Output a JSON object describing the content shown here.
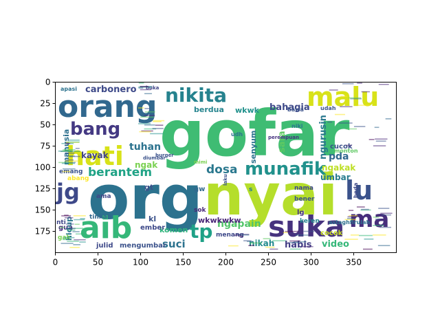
{
  "chart_data": {
    "type": "wordcloud",
    "background": "#ffffff",
    "colormap": "viridis",
    "grid": false,
    "xlim": [
      0,
      400
    ],
    "ylim": [
      200,
      0
    ],
    "xticks": [
      "0",
      "50",
      "100",
      "150",
      "200",
      "250",
      "300",
      "350"
    ],
    "yticks": [
      "0",
      "25",
      "50",
      "75",
      "100",
      "125",
      "150",
      "175"
    ],
    "words": [
      {
        "text": "gofar",
        "color": "#3fbc73"
      },
      {
        "text": "org",
        "color": "#2c728e"
      },
      {
        "text": "nyai",
        "color": "#b5de2b"
      },
      {
        "text": "orang",
        "color": "#31688e"
      },
      {
        "text": "aib",
        "color": "#35b779"
      },
      {
        "text": "suka",
        "color": "#46327e"
      },
      {
        "text": "malu",
        "color": "#d8e219"
      },
      {
        "text": "hati",
        "color": "#d8e219"
      },
      {
        "text": "nikita",
        "color": "#26828e"
      },
      {
        "text": "munafik",
        "color": "#21918c"
      },
      {
        "text": "ma",
        "color": "#472d7b"
      },
      {
        "text": "lu",
        "color": "#3b528b"
      },
      {
        "text": "jg",
        "color": "#3e4989"
      },
      {
        "text": "tp",
        "color": "#1fa187"
      },
      {
        "text": "bang",
        "color": "#443983"
      },
      {
        "text": "dosa",
        "color": "#2a788e"
      },
      {
        "text": "berantem",
        "color": "#20a386"
      },
      {
        "text": "carbonero",
        "color": "#3e4a89"
      },
      {
        "text": "tuhan",
        "color": "#2c728e"
      },
      {
        "text": "suci",
        "color": "#2c728e"
      },
      {
        "text": "video",
        "color": "#35b779"
      },
      {
        "text": "habis",
        "color": "#433e85"
      },
      {
        "text": "nikah",
        "color": "#238a8d"
      },
      {
        "text": "ngapain",
        "color": "#52c569"
      },
      {
        "text": "bahagia",
        "color": "#3e4989"
      },
      {
        "text": "wkwk",
        "color": "#21918c"
      },
      {
        "text": "berdua",
        "color": "#25848e"
      },
      {
        "text": "manusia",
        "color": "#2d708e"
      },
      {
        "text": "kayak",
        "color": "#414487"
      },
      {
        "text": "ngak",
        "color": "#7ad151"
      },
      {
        "text": "gt",
        "color": "#3b528b"
      },
      {
        "text": "senyum",
        "color": "#2c728e"
      },
      {
        "text": "sara",
        "color": "#5ec962"
      },
      {
        "text": "ngurusin",
        "color": "#2a788e"
      },
      {
        "text": "pda",
        "color": "#31688e"
      },
      {
        "text": "cucok",
        "color": "#3b528b"
      },
      {
        "text": "ngakak",
        "color": "#bddf26"
      },
      {
        "text": "umbar",
        "color": "#287c8e"
      },
      {
        "text": "komen",
        "color": "#2fb47c"
      },
      {
        "text": "kl",
        "color": "#3b528b"
      },
      {
        "text": "ember",
        "color": "#3e4989"
      },
      {
        "text": "gua",
        "color": "#472d7b"
      },
      {
        "text": "cocok",
        "color": "#c8e020"
      },
      {
        "text": "wkwkwkw",
        "color": "#482677"
      },
      {
        "text": "menang",
        "color": "#3e4989"
      },
      {
        "text": "mengumbar",
        "color": "#3b528b"
      },
      {
        "text": "julid",
        "color": "#3e4989"
      },
      {
        "text": "hidup",
        "color": "#2a788e"
      },
      {
        "text": "gw",
        "color": "#31688e"
      },
      {
        "text": "emang",
        "color": "#3b528b"
      },
      {
        "text": "abang",
        "color": "#fde725"
      },
      {
        "text": "ama",
        "color": "#404688"
      },
      {
        "text": "nti",
        "color": "#404688"
      },
      {
        "text": "gak",
        "color": "#7ad151"
      },
      {
        "text": "tinkah",
        "color": "#31688e"
      },
      {
        "text": "sok",
        "color": "#482878"
      },
      {
        "text": "bener",
        "color": "#3b528b"
      },
      {
        "text": "keren",
        "color": "#25858e"
      },
      {
        "text": "nama",
        "color": "#3e4989"
      },
      {
        "text": "lg",
        "color": "#46337f"
      },
      {
        "text": "astaghfirulah",
        "color": "#2d708e"
      },
      {
        "text": "monton",
        "color": "#5ec962"
      },
      {
        "text": "niki",
        "color": "#2a788e"
      },
      {
        "text": "udah",
        "color": "#3b528b"
      },
      {
        "text": "bawa",
        "color": "#3b528b"
      },
      {
        "text": "apasi",
        "color": "#2c728e"
      },
      {
        "text": "buka",
        "color": "#414487"
      },
      {
        "text": "beda",
        "color": "#3e4989"
      },
      {
        "text": "udh",
        "color": "#2c728e"
      },
      {
        "text": "diumbar",
        "color": "#3b528b"
      },
      {
        "text": "perempuan",
        "color": "#46337f"
      },
      {
        "text": "mimi",
        "color": "#7ad151"
      },
      {
        "text": "laku",
        "color": "#3b528b"
      },
      {
        "text": "burger",
        "color": "#3b528b"
      },
      {
        "text": "s",
        "color": "#287c8e"
      }
    ]
  }
}
